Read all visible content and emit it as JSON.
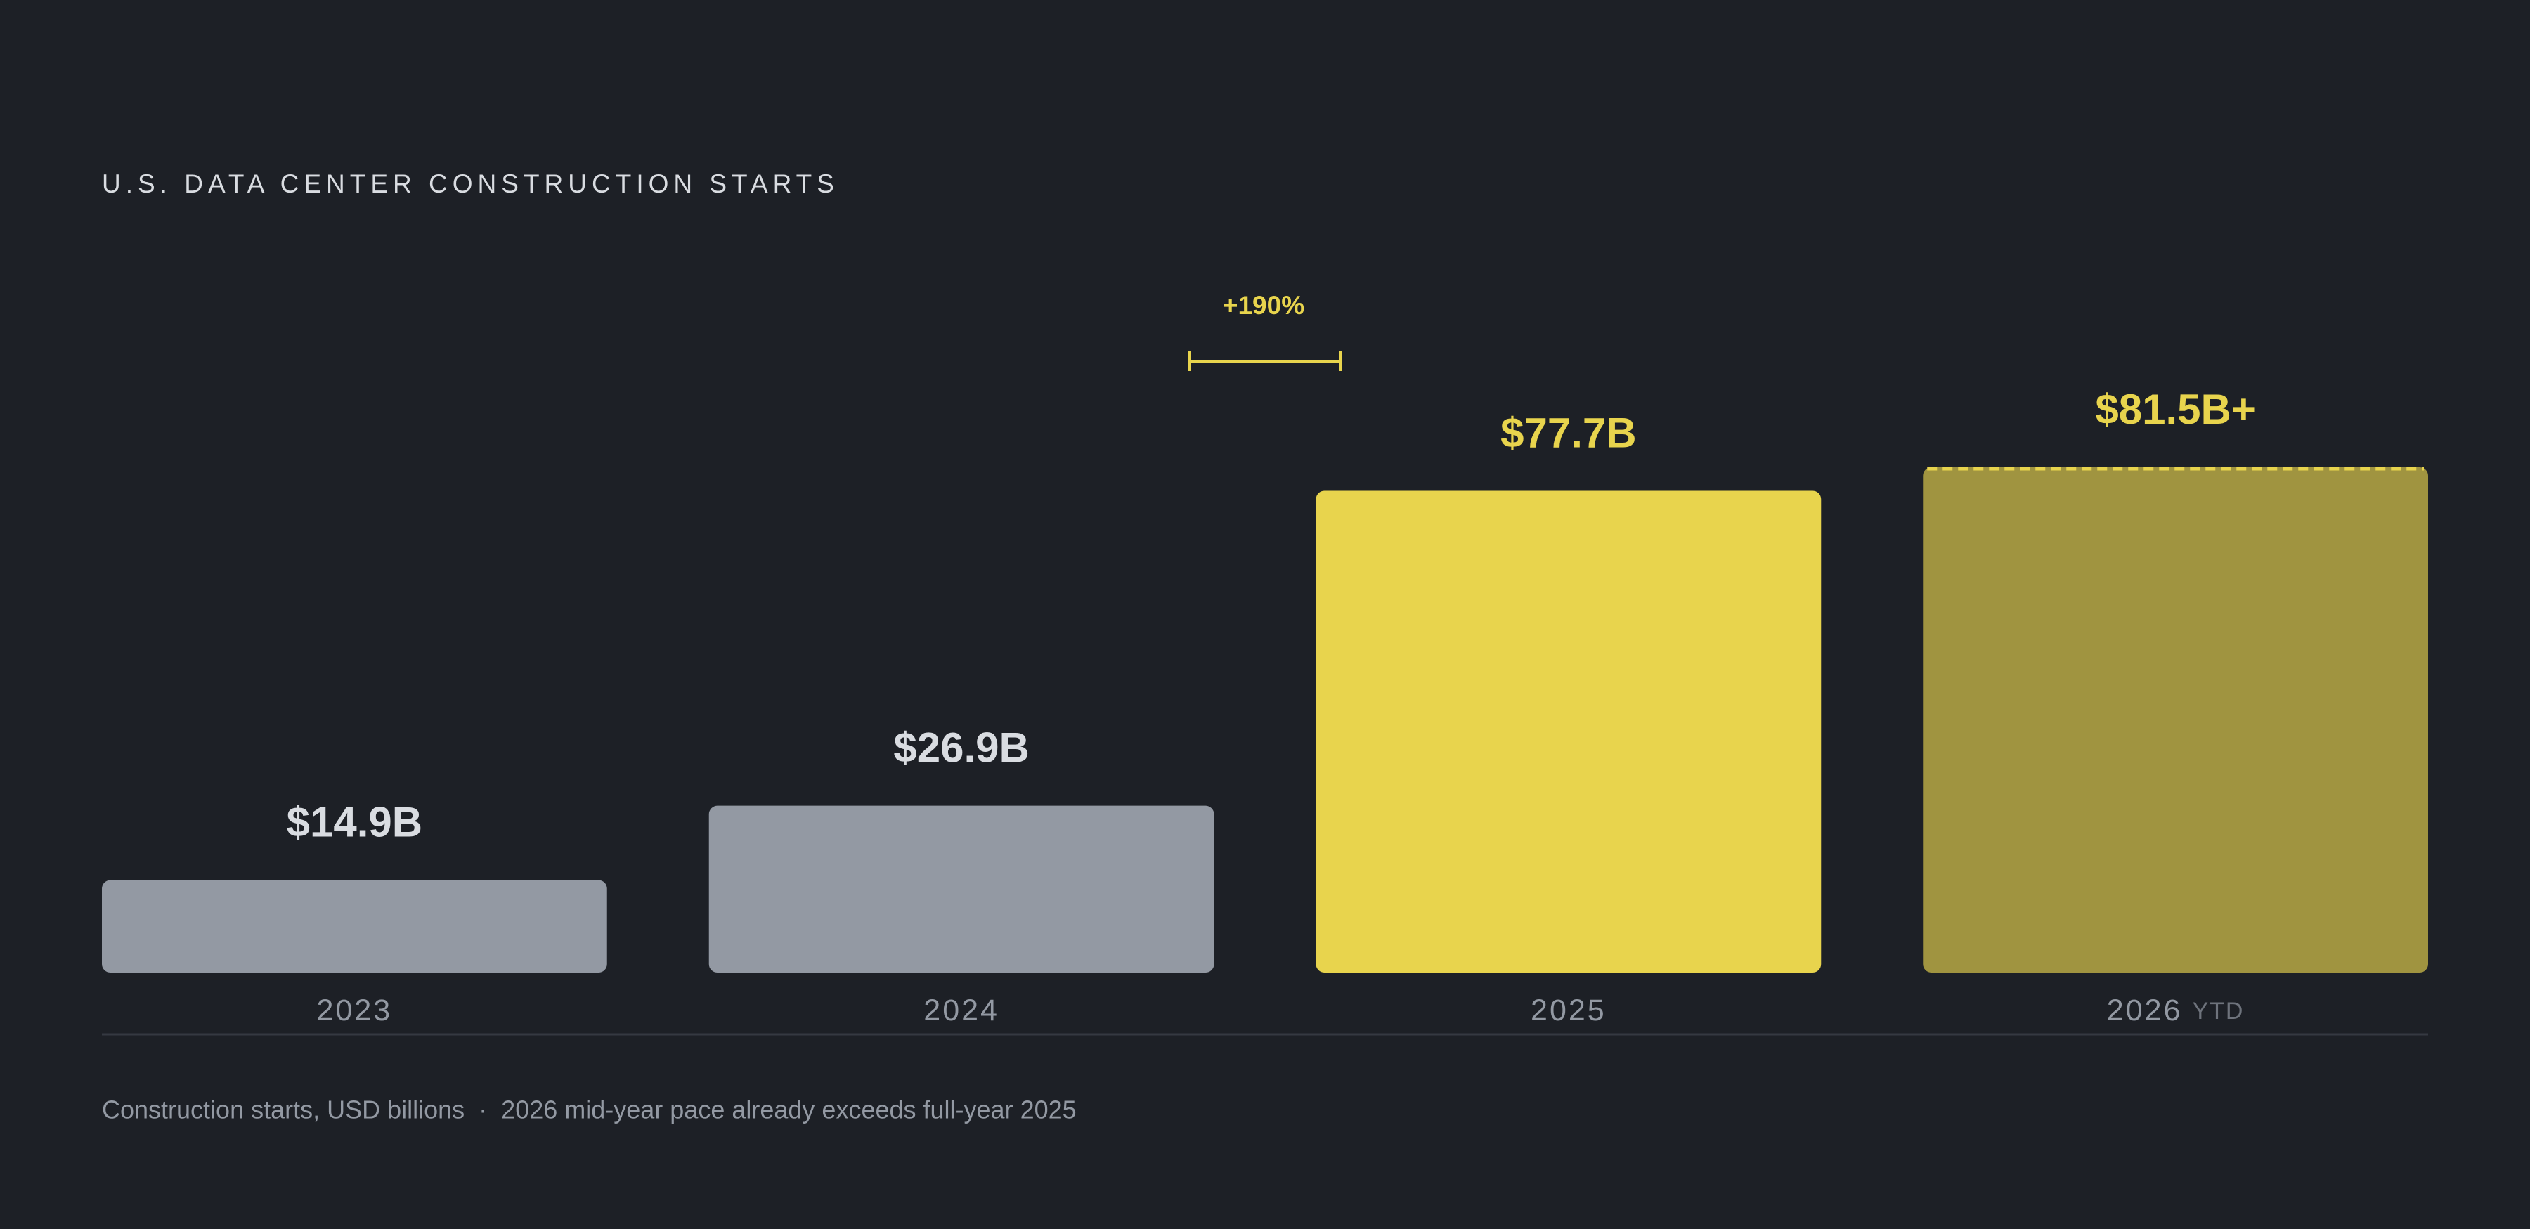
{
  "chart_data": {
    "type": "bar",
    "title": "U.S. DATA CENTER CONSTRUCTION STARTS",
    "categories": [
      "2023",
      "2024",
      "2025",
      "2026"
    ],
    "category_notes": [
      null,
      null,
      null,
      "YTD"
    ],
    "values": [
      14.9,
      26.9,
      77.7,
      81.5
    ],
    "value_labels": [
      "$14.9B",
      "$26.9B",
      "$77.7B",
      "$81.5B+"
    ],
    "colors": [
      "#9399a3",
      "#9399a3",
      "#e8d44d",
      "#a09440"
    ],
    "label_colors": [
      "#d9dce1",
      "#d9dce1",
      "#e8d44d",
      "#e8d44d"
    ],
    "annotation": "+190%",
    "footnote": "Construction starts, USD billions  ·  2026 mid-year pace already exceeds full-year 2025"
  }
}
